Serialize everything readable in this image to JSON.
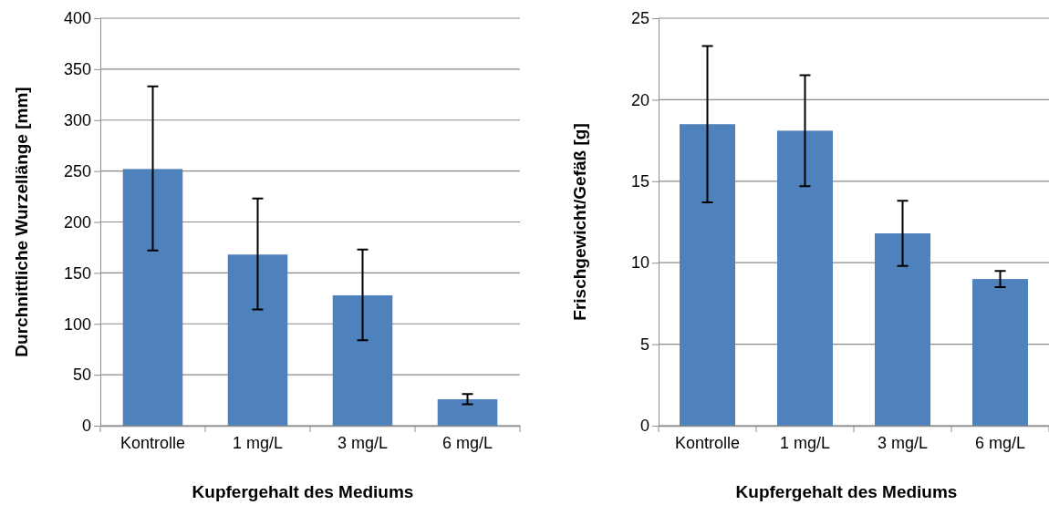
{
  "chart_data": [
    {
      "type": "bar",
      "xlabel": "Kupfergehalt des Mediums",
      "ylabel": "Durchnittliche Wurzellänge [mm]",
      "categories": [
        "Kontrolle",
        "1 mg/L",
        "3 mg/L",
        "6 mg/L"
      ],
      "values": [
        252,
        168,
        128,
        26
      ],
      "color": "#4f81bd",
      "errors": [
        [
          172,
          333
        ],
        [
          114,
          223
        ],
        [
          84,
          173
        ],
        [
          21,
          31
        ]
      ],
      "ylim": [
        0,
        400
      ],
      "yticks": [
        0,
        50,
        100,
        150,
        200,
        250,
        300,
        350,
        400
      ],
      "grid": "y"
    },
    {
      "type": "bar",
      "xlabel": "Kupfergehalt des Mediums",
      "ylabel": "Frischgewicht/Gefäß [g]",
      "categories": [
        "Kontrolle",
        "1 mg/L",
        "3 mg/L",
        "6 mg/L"
      ],
      "values": [
        18.5,
        18.1,
        11.8,
        9.0
      ],
      "color": "#4f81bd",
      "errors": [
        [
          13.7,
          23.3
        ],
        [
          14.7,
          21.5
        ],
        [
          9.8,
          13.8
        ],
        [
          8.5,
          9.5
        ]
      ],
      "ylim": [
        0,
        25
      ],
      "yticks": [
        0,
        5,
        10,
        15,
        20,
        25
      ],
      "grid": "y"
    }
  ]
}
